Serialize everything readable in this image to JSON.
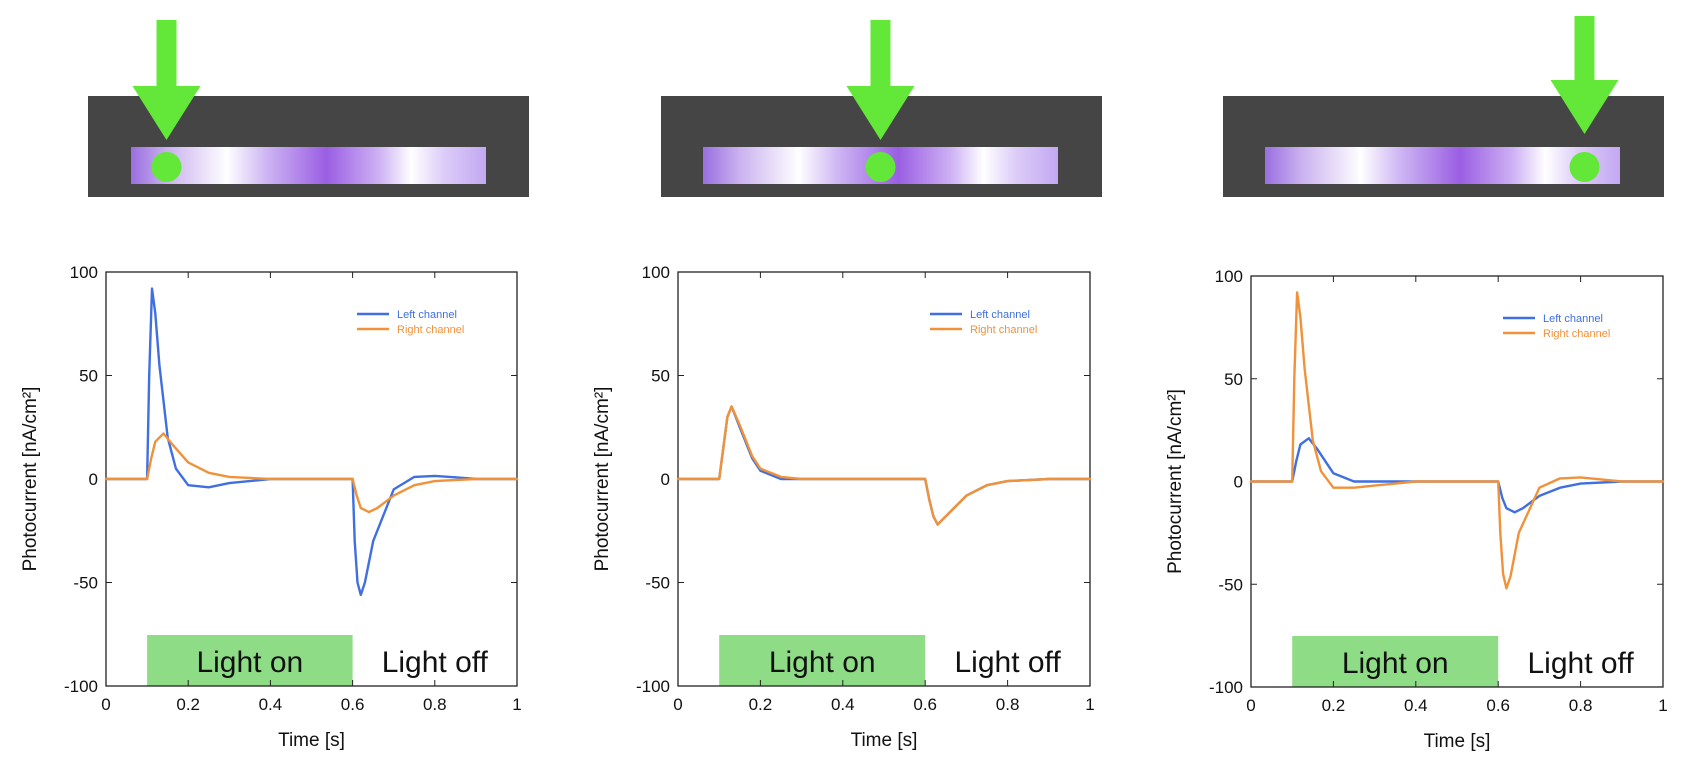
{
  "colors": {
    "left_channel": "#3f6fe0",
    "right_channel": "#f0923a",
    "light_on_band": "#8fdc86",
    "arrow": "#63e83a",
    "spot": "#63e83a",
    "device_frame": "#454545"
  },
  "chart_data": [
    {
      "type": "line",
      "xlabel": "Time [s]",
      "ylabel": "Photocurrent [nA/cm²]",
      "xlim": [
        0,
        1
      ],
      "ylim": [
        -100,
        100
      ],
      "xticks": [
        "0",
        "0.2",
        "0.4",
        "0.6",
        "0.8",
        "1"
      ],
      "yticks": [
        "100",
        "50",
        "0",
        "-50",
        "-100"
      ],
      "light_spot_position": 0.1,
      "annotations": {
        "light_on": "Light on",
        "light_off": "Light off",
        "light_on_interval": [
          0.1,
          0.6
        ]
      },
      "legend_position": "top-right",
      "series": [
        {
          "name": "Left channel",
          "x": [
            0,
            0.1,
            0.105,
            0.112,
            0.12,
            0.13,
            0.15,
            0.17,
            0.2,
            0.25,
            0.3,
            0.4,
            0.5,
            0.6,
            0.605,
            0.612,
            0.62,
            0.63,
            0.65,
            0.7,
            0.75,
            0.8,
            0.85,
            0.9,
            1
          ],
          "y": [
            0,
            0,
            50,
            92,
            80,
            55,
            20,
            5,
            -3,
            -4,
            -2,
            0,
            0,
            0,
            -30,
            -50,
            -56,
            -50,
            -30,
            -5,
            1,
            1.5,
            0.8,
            0,
            0
          ]
        },
        {
          "name": "Right channel",
          "x": [
            0,
            0.1,
            0.11,
            0.12,
            0.14,
            0.16,
            0.2,
            0.25,
            0.3,
            0.4,
            0.5,
            0.6,
            0.61,
            0.62,
            0.64,
            0.66,
            0.7,
            0.75,
            0.8,
            0.9,
            1
          ],
          "y": [
            0,
            0,
            10,
            18,
            22,
            17,
            8,
            3,
            1,
            0,
            0,
            0,
            -8,
            -14,
            -16,
            -14,
            -8,
            -3,
            -1,
            0,
            0
          ]
        }
      ]
    },
    {
      "type": "line",
      "xlabel": "Time [s]",
      "ylabel": "Photocurrent [nA/cm²]",
      "xlim": [
        0,
        1
      ],
      "ylim": [
        -100,
        100
      ],
      "xticks": [
        "0",
        "0.2",
        "0.4",
        "0.6",
        "0.8",
        "1"
      ],
      "yticks": [
        "100",
        "50",
        "0",
        "-50",
        "-100"
      ],
      "light_spot_position": 0.5,
      "annotations": {
        "light_on": "Light on",
        "light_off": "Light off",
        "light_on_interval": [
          0.1,
          0.6
        ]
      },
      "legend_position": "top-right",
      "series": [
        {
          "name": "Left channel",
          "x": [
            0,
            0.1,
            0.11,
            0.12,
            0.13,
            0.15,
            0.18,
            0.2,
            0.25,
            0.3,
            0.4,
            0.5,
            0.6,
            0.61,
            0.62,
            0.63,
            0.65,
            0.7,
            0.75,
            0.8,
            0.9,
            1
          ],
          "y": [
            0,
            0,
            15,
            30,
            35,
            25,
            10,
            4,
            0,
            0,
            0,
            0,
            0,
            -10,
            -18,
            -22,
            -18,
            -8,
            -3,
            -1,
            0,
            0
          ]
        },
        {
          "name": "Right channel",
          "x": [
            0,
            0.1,
            0.11,
            0.12,
            0.13,
            0.15,
            0.18,
            0.2,
            0.25,
            0.3,
            0.4,
            0.5,
            0.6,
            0.61,
            0.62,
            0.63,
            0.65,
            0.7,
            0.75,
            0.8,
            0.9,
            1
          ],
          "y": [
            0,
            0,
            15,
            30,
            35,
            26,
            11,
            5,
            1,
            0,
            0,
            0,
            0,
            -10,
            -18,
            -22,
            -18,
            -8,
            -3,
            -1,
            0,
            0
          ]
        }
      ]
    },
    {
      "type": "line",
      "xlabel": "Time [s]",
      "ylabel": "Photocurrent [nA/cm²]",
      "xlim": [
        0,
        1
      ],
      "ylim": [
        -100,
        100
      ],
      "xticks": [
        "0",
        "0.2",
        "0.4",
        "0.6",
        "0.8",
        "1"
      ],
      "yticks": [
        "100",
        "50",
        "0",
        "-50",
        "-100"
      ],
      "light_spot_position": 0.9,
      "annotations": {
        "light_on": "Light on",
        "light_off": "Light off",
        "light_on_interval": [
          0.1,
          0.6
        ]
      },
      "legend_position": "top-right",
      "series": [
        {
          "name": "Left channel",
          "x": [
            0,
            0.1,
            0.11,
            0.12,
            0.14,
            0.16,
            0.2,
            0.25,
            0.3,
            0.4,
            0.5,
            0.6,
            0.61,
            0.62,
            0.64,
            0.66,
            0.7,
            0.75,
            0.8,
            0.9,
            1
          ],
          "y": [
            0,
            0,
            10,
            18,
            21,
            16,
            4,
            0,
            0,
            0,
            0,
            0,
            -8,
            -13,
            -15,
            -13,
            -7,
            -3,
            -1,
            0,
            0
          ]
        },
        {
          "name": "Right channel",
          "x": [
            0,
            0.1,
            0.105,
            0.112,
            0.12,
            0.13,
            0.15,
            0.17,
            0.2,
            0.25,
            0.3,
            0.4,
            0.5,
            0.6,
            0.605,
            0.612,
            0.62,
            0.63,
            0.65,
            0.7,
            0.75,
            0.8,
            0.85,
            0.9,
            1
          ],
          "y": [
            0,
            0,
            50,
            92,
            80,
            55,
            20,
            5,
            -3,
            -3,
            -2,
            0,
            0,
            0,
            -25,
            -45,
            -52,
            -46,
            -25,
            -3,
            1.5,
            2,
            1,
            0,
            0
          ]
        }
      ]
    }
  ]
}
